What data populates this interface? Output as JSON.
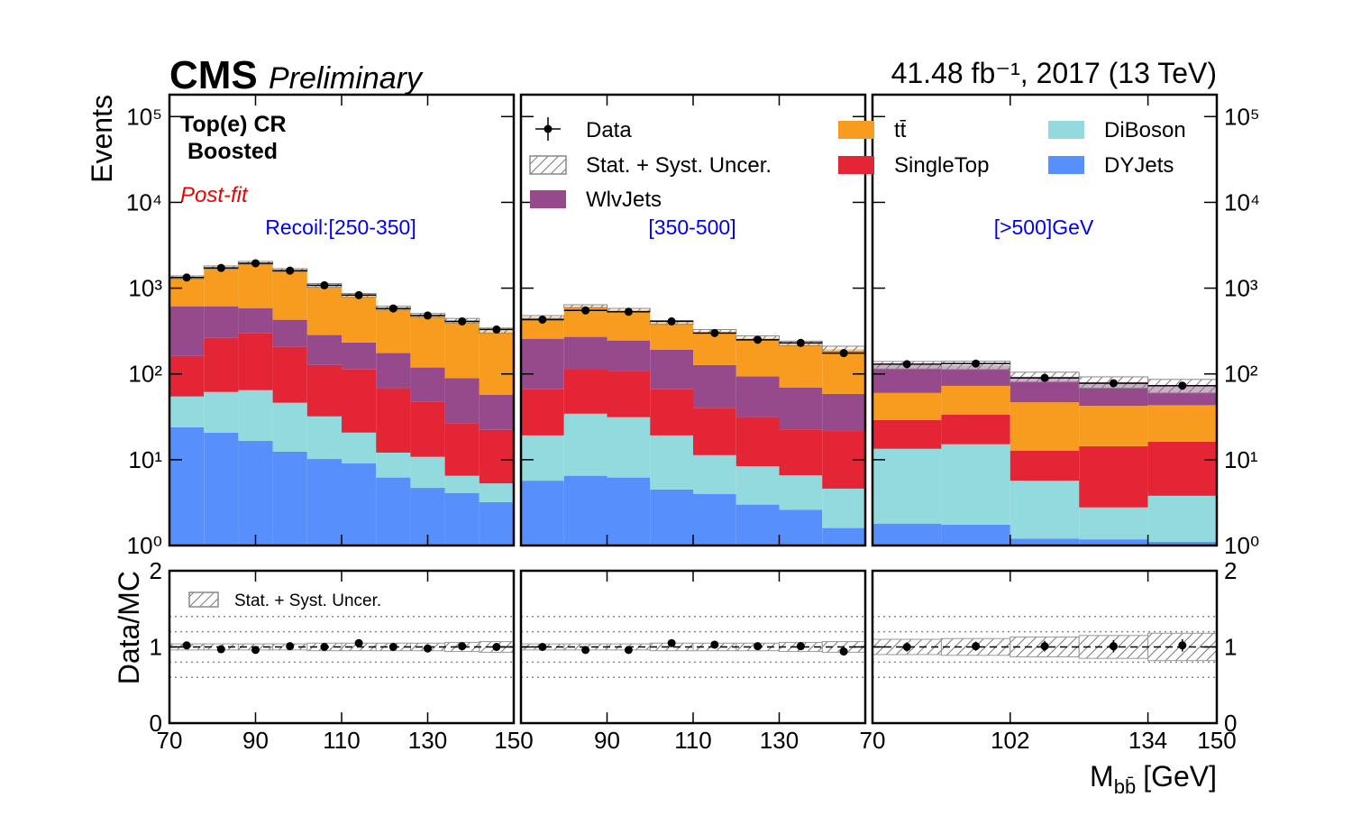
{
  "chart_data": {
    "type": "stacked_histogram",
    "experiment": "CMS",
    "status": "Preliminary",
    "lumi": "41.48 fb⁻¹, 2017 (13 TeV)",
    "region": "Top(e) CR",
    "category": "Boosted",
    "fit": "Post-fit",
    "y_label": "Events",
    "ratio_y_label": "Data/MC",
    "x_label": {
      "main": "M",
      "sub": "bb̄",
      "unit": "[GeV]"
    },
    "data_label": "Data",
    "unc_label": "Stat. + Syst. Uncer.",
    "log_y": true,
    "ylim": [
      1,
      180000
    ],
    "yticks": [
      {
        "value": 1,
        "label": "10⁰"
      },
      {
        "value": 10,
        "label": "10¹"
      },
      {
        "value": 100,
        "label": "10²"
      },
      {
        "value": 1000,
        "label": "10³"
      },
      {
        "value": 10000,
        "label": "10⁴"
      },
      {
        "value": 100000,
        "label": "10⁵"
      }
    ],
    "ratio_ylim": [
      0,
      2
    ],
    "ratio_yticks": [
      0,
      1,
      2
    ],
    "ratio_ref": 1,
    "ratio_lines": [
      0.6,
      0.8,
      1.2,
      1.4
    ],
    "series": [
      {
        "name": "WlvJets",
        "color": "#964a8b",
        "values": [
          [
            453,
            351,
            288,
            221,
            157,
            120,
            107,
            71,
            63,
            35
          ],
          [
            191,
            157,
            137,
            126,
            87,
            62,
            47,
            37
          ],
          [
            67,
            54,
            46,
            38,
            30
          ]
        ]
      },
      {
        "name": "tt̄",
        "color": "#f89c20",
        "values": [
          [
            722,
            1131,
            1386,
            1194,
            792,
            591,
            411,
            364,
            329,
            263
          ],
          [
            203,
            345,
            313,
            206,
            186,
            171,
            158,
            138
          ],
          [
            31,
            39,
            34,
            28,
            27
          ]
        ]
      },
      {
        "name": "SingleTop",
        "color": "#e42536",
        "values": [
          [
            107,
            202,
            233,
            161,
            95,
            92,
            56,
            37,
            20,
            17
          ],
          [
            47,
            79,
            77,
            47,
            29,
            23,
            16,
            17
          ],
          [
            15.6,
            18.5,
            7.0,
            11.6,
            12.4
          ]
        ]
      },
      {
        "name": "DiBoson",
        "color": "#92dadd",
        "values": [
          [
            30.7,
            40.9,
            48.1,
            33.7,
            21.8,
            11.6,
            5.9,
            6.1,
            2.4,
            2.1
          ],
          [
            13.5,
            27.9,
            25.1,
            14.7,
            7.3,
            5.4,
            4.0,
            3.0
          ],
          [
            11.6,
            13.4,
            4.5,
            1.6,
            2.7
          ]
        ]
      },
      {
        "name": "DYJets",
        "color": "#5790fc",
        "values": [
          [
            23.9,
            20.7,
            16.6,
            12.4,
            10.2,
            9.1,
            6.2,
            4.7,
            4.1,
            3.2
          ],
          [
            5.7,
            6.5,
            6.2,
            4.5,
            4.0,
            3.0,
            2.6,
            1.6
          ],
          [
            1.8,
            1.75,
            1.2,
            1.18,
            1.1
          ]
        ]
      }
    ],
    "panels": [
      {
        "label": "Recoil:[250-350]",
        "xlim": [
          70,
          150
        ],
        "xticks": [
          70,
          90,
          110,
          130,
          150
        ],
        "bins": [
          70,
          78,
          86,
          94,
          102,
          110,
          118,
          126,
          134,
          142,
          150
        ],
        "stack": [
          4,
          3,
          2,
          0,
          1
        ],
        "data": [
          1330,
          1720,
          1950,
          1600,
          1080,
          830,
          580,
          480,
          410,
          330
        ],
        "ratio": [
          1.02,
          0.97,
          0.96,
          1.01,
          1.0,
          1.05,
          1.0,
          0.98,
          1.01,
          1.0
        ],
        "ratio_err": [
          0.02,
          0.02,
          0.02,
          0.02,
          0.02,
          0.03,
          0.03,
          0.03,
          0.03,
          0.04
        ],
        "unc": [
          0.04,
          0.04,
          0.04,
          0.04,
          0.05,
          0.05,
          0.05,
          0.05,
          0.06,
          0.07
        ]
      },
      {
        "label": "[350-500]",
        "xlim": [
          70,
          150
        ],
        "xticks": [
          90,
          110,
          130
        ],
        "bins": [
          70,
          80,
          90,
          100,
          110,
          120,
          130,
          140,
          150
        ],
        "stack": [
          4,
          3,
          2,
          0,
          1
        ],
        "data": [
          430,
          550,
          530,
          410,
          300,
          250,
          230,
          175
        ],
        "ratio": [
          1.0,
          0.96,
          0.96,
          1.05,
          1.03,
          1.01,
          1.01,
          0.94
        ],
        "ratio_err": [
          0.03,
          0.03,
          0.03,
          0.03,
          0.04,
          0.04,
          0.04,
          0.05
        ],
        "unc": [
          0.04,
          0.04,
          0.04,
          0.05,
          0.05,
          0.05,
          0.06,
          0.07
        ]
      },
      {
        "label": "[>500]GeV",
        "xlim": [
          70,
          150
        ],
        "xticks": [
          70,
          102,
          134,
          150
        ],
        "bins": [
          70,
          86,
          102,
          118,
          134,
          150
        ],
        "stack": [
          4,
          3,
          2,
          1,
          0
        ],
        "data": [
          130,
          132,
          90,
          78,
          73
        ],
        "ratio": [
          1.0,
          1.01,
          1.01,
          1.01,
          1.02
        ],
        "ratio_err": [
          0.06,
          0.06,
          0.07,
          0.08,
          0.08
        ],
        "unc": [
          0.1,
          0.11,
          0.13,
          0.15,
          0.18
        ]
      }
    ]
  }
}
